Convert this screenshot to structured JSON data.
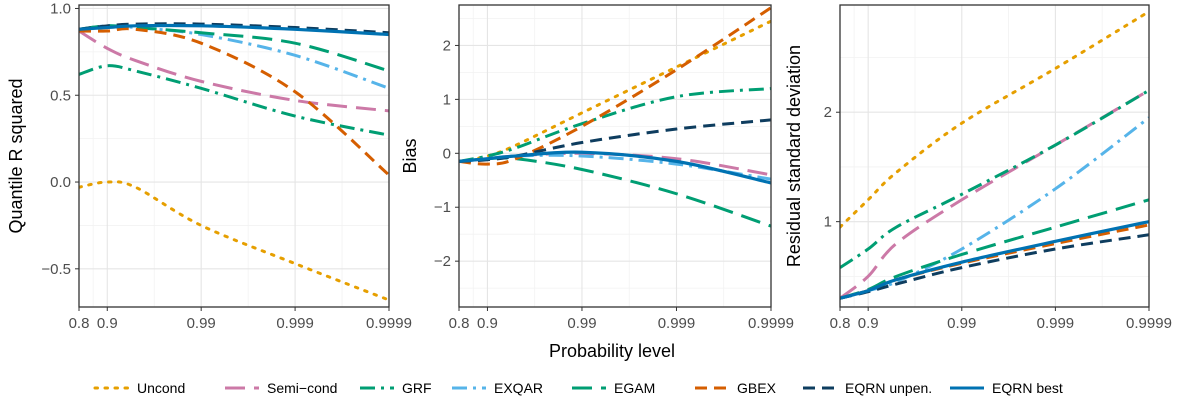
{
  "chart_data": {
    "type": "line",
    "xlabel": "Probability level",
    "x_tick_labels": [
      "0.8",
      "0.9",
      "0.99",
      "0.999",
      "0.9999"
    ],
    "x_tick_positions": [
      0.8,
      0.9,
      0.99,
      0.999,
      0.9999
    ],
    "x_scale": "log(1/(1-p))",
    "grid": true,
    "legend_position": "bottom",
    "legend": [
      {
        "key": "uncond",
        "label": "Uncond",
        "color": "#E69F00",
        "dash": "dotted"
      },
      {
        "key": "semicond",
        "label": "Semi−cond",
        "color": "#CC79A7",
        "dash": "longdash"
      },
      {
        "key": "grf",
        "label": "GRF",
        "color": "#009E73",
        "dash": "dotdash"
      },
      {
        "key": "exqar",
        "label": "EXQAR",
        "color": "#56B4E9",
        "dash": "dotdash"
      },
      {
        "key": "egam",
        "label": "EGAM",
        "color": "#009E73",
        "dash": "longdash"
      },
      {
        "key": "gbex",
        "label": "GBEX",
        "color": "#D55E00",
        "dash": "dashed"
      },
      {
        "key": "eqrn_unpen",
        "label": "EQRN unpen.",
        "color": "#0E3D5F",
        "dash": "dashed"
      },
      {
        "key": "eqrn_best",
        "label": "EQRN best",
        "color": "#0072B2",
        "dash": "solid"
      }
    ],
    "panels": [
      {
        "ylabel": "Quantile R squared",
        "ylim": [
          -0.72,
          1.02
        ],
        "y_ticks": [
          -0.5,
          0.0,
          0.5,
          1.0
        ],
        "y_tick_labels": [
          "−0.5",
          "0.0",
          "0.5",
          "1.0"
        ],
        "series": [
          {
            "key": "uncond",
            "x": [
              0.8,
              0.9,
              0.95,
              0.99,
              0.999,
              0.9999
            ],
            "y": [
              -0.03,
              0.0,
              -0.03,
              -0.25,
              -0.47,
              -0.68
            ]
          },
          {
            "key": "semicond",
            "x": [
              0.8,
              0.9,
              0.95,
              0.99,
              0.999,
              0.9999
            ],
            "y": [
              0.87,
              0.77,
              0.7,
              0.58,
              0.47,
              0.41
            ]
          },
          {
            "key": "grf",
            "x": [
              0.8,
              0.9,
              0.95,
              0.99,
              0.999,
              0.9999
            ],
            "y": [
              0.62,
              0.67,
              0.64,
              0.54,
              0.38,
              0.27
            ]
          },
          {
            "key": "exqar",
            "x": [
              0.8,
              0.9,
              0.95,
              0.99,
              0.999,
              0.9999
            ],
            "y": [
              0.88,
              0.9,
              0.89,
              0.85,
              0.73,
              0.54
            ]
          },
          {
            "key": "egam",
            "x": [
              0.8,
              0.9,
              0.95,
              0.99,
              0.999,
              0.9999
            ],
            "y": [
              0.88,
              0.9,
              0.89,
              0.86,
              0.8,
              0.64
            ]
          },
          {
            "key": "gbex",
            "x": [
              0.8,
              0.9,
              0.95,
              0.99,
              0.999,
              0.9999
            ],
            "y": [
              0.87,
              0.87,
              0.88,
              0.8,
              0.52,
              0.04
            ]
          },
          {
            "key": "eqrn_unpen",
            "x": [
              0.8,
              0.9,
              0.95,
              0.99,
              0.999,
              0.9999
            ],
            "y": [
              0.88,
              0.9,
              0.91,
              0.91,
              0.89,
              0.86
            ]
          },
          {
            "key": "eqrn_best",
            "x": [
              0.8,
              0.9,
              0.95,
              0.99,
              0.999,
              0.9999
            ],
            "y": [
              0.88,
              0.89,
              0.9,
              0.9,
              0.88,
              0.85
            ]
          }
        ]
      },
      {
        "ylabel": "Bias",
        "ylim": [
          -2.85,
          2.75
        ],
        "y_ticks": [
          -2,
          -1,
          0,
          1,
          2
        ],
        "y_tick_labels": [
          "−2",
          "−1",
          "0",
          "1",
          "2"
        ],
        "series": [
          {
            "key": "uncond",
            "x": [
              0.8,
              0.9,
              0.95,
              0.99,
              0.999,
              0.9999
            ],
            "y": [
              -0.15,
              -0.05,
              0.15,
              0.75,
              1.6,
              2.45
            ]
          },
          {
            "key": "semicond",
            "x": [
              0.8,
              0.9,
              0.95,
              0.99,
              0.999,
              0.9999
            ],
            "y": [
              -0.15,
              -0.1,
              -0.05,
              0.0,
              -0.1,
              -0.4
            ]
          },
          {
            "key": "grf",
            "x": [
              0.8,
              0.9,
              0.95,
              0.99,
              0.999,
              0.9999
            ],
            "y": [
              -0.15,
              -0.05,
              0.1,
              0.55,
              1.05,
              1.2
            ]
          },
          {
            "key": "exqar",
            "x": [
              0.8,
              0.9,
              0.95,
              0.99,
              0.999,
              0.9999
            ],
            "y": [
              -0.15,
              -0.1,
              -0.05,
              -0.05,
              -0.2,
              -0.48
            ]
          },
          {
            "key": "egam",
            "x": [
              0.8,
              0.9,
              0.95,
              0.99,
              0.999,
              0.9999
            ],
            "y": [
              -0.15,
              -0.1,
              -0.1,
              -0.3,
              -0.75,
              -1.35
            ]
          },
          {
            "key": "gbex",
            "x": [
              0.8,
              0.9,
              0.95,
              0.99,
              0.999,
              0.9999
            ],
            "y": [
              -0.15,
              -0.2,
              -0.1,
              0.5,
              1.55,
              2.7
            ]
          },
          {
            "key": "eqrn_unpen",
            "x": [
              0.8,
              0.9,
              0.95,
              0.99,
              0.999,
              0.9999
            ],
            "y": [
              -0.15,
              -0.12,
              -0.05,
              0.2,
              0.45,
              0.62
            ]
          },
          {
            "key": "eqrn_best",
            "x": [
              0.8,
              0.9,
              0.95,
              0.99,
              0.999,
              0.9999
            ],
            "y": [
              -0.15,
              -0.1,
              -0.05,
              0.02,
              -0.15,
              -0.55
            ]
          }
        ]
      },
      {
        "ylabel": "Residual standard deviation",
        "ylim": [
          0.22,
          2.98
        ],
        "y_ticks": [
          1,
          2
        ],
        "y_tick_labels": [
          "1",
          "2"
        ],
        "series": [
          {
            "key": "uncond",
            "x": [
              0.8,
              0.9,
              0.95,
              0.99,
              0.999,
              0.9999
            ],
            "y": [
              0.95,
              1.2,
              1.45,
              1.9,
              2.4,
              2.92
            ]
          },
          {
            "key": "semicond",
            "x": [
              0.8,
              0.9,
              0.95,
              0.99,
              0.999,
              0.9999
            ],
            "y": [
              0.3,
              0.5,
              0.8,
              1.2,
              1.7,
              2.2
            ]
          },
          {
            "key": "grf",
            "x": [
              0.8,
              0.9,
              0.95,
              0.99,
              0.999,
              0.9999
            ],
            "y": [
              0.58,
              0.75,
              0.95,
              1.25,
              1.7,
              2.2
            ]
          },
          {
            "key": "exqar",
            "x": [
              0.8,
              0.9,
              0.95,
              0.99,
              0.999,
              0.9999
            ],
            "y": [
              0.3,
              0.37,
              0.45,
              0.75,
              1.3,
              1.95
            ]
          },
          {
            "key": "egam",
            "x": [
              0.8,
              0.9,
              0.95,
              0.99,
              0.999,
              0.9999
            ],
            "y": [
              0.3,
              0.38,
              0.5,
              0.7,
              0.95,
              1.2
            ]
          },
          {
            "key": "gbex",
            "x": [
              0.8,
              0.9,
              0.95,
              0.99,
              0.999,
              0.9999
            ],
            "y": [
              0.3,
              0.37,
              0.47,
              0.62,
              0.8,
              0.97
            ]
          },
          {
            "key": "eqrn_unpen",
            "x": [
              0.8,
              0.9,
              0.95,
              0.99,
              0.999,
              0.9999
            ],
            "y": [
              0.3,
              0.36,
              0.43,
              0.58,
              0.75,
              0.88
            ]
          },
          {
            "key": "eqrn_best",
            "x": [
              0.8,
              0.9,
              0.95,
              0.99,
              0.999,
              0.9999
            ],
            "y": [
              0.3,
              0.37,
              0.47,
              0.63,
              0.82,
              1.0
            ]
          }
        ]
      }
    ]
  }
}
